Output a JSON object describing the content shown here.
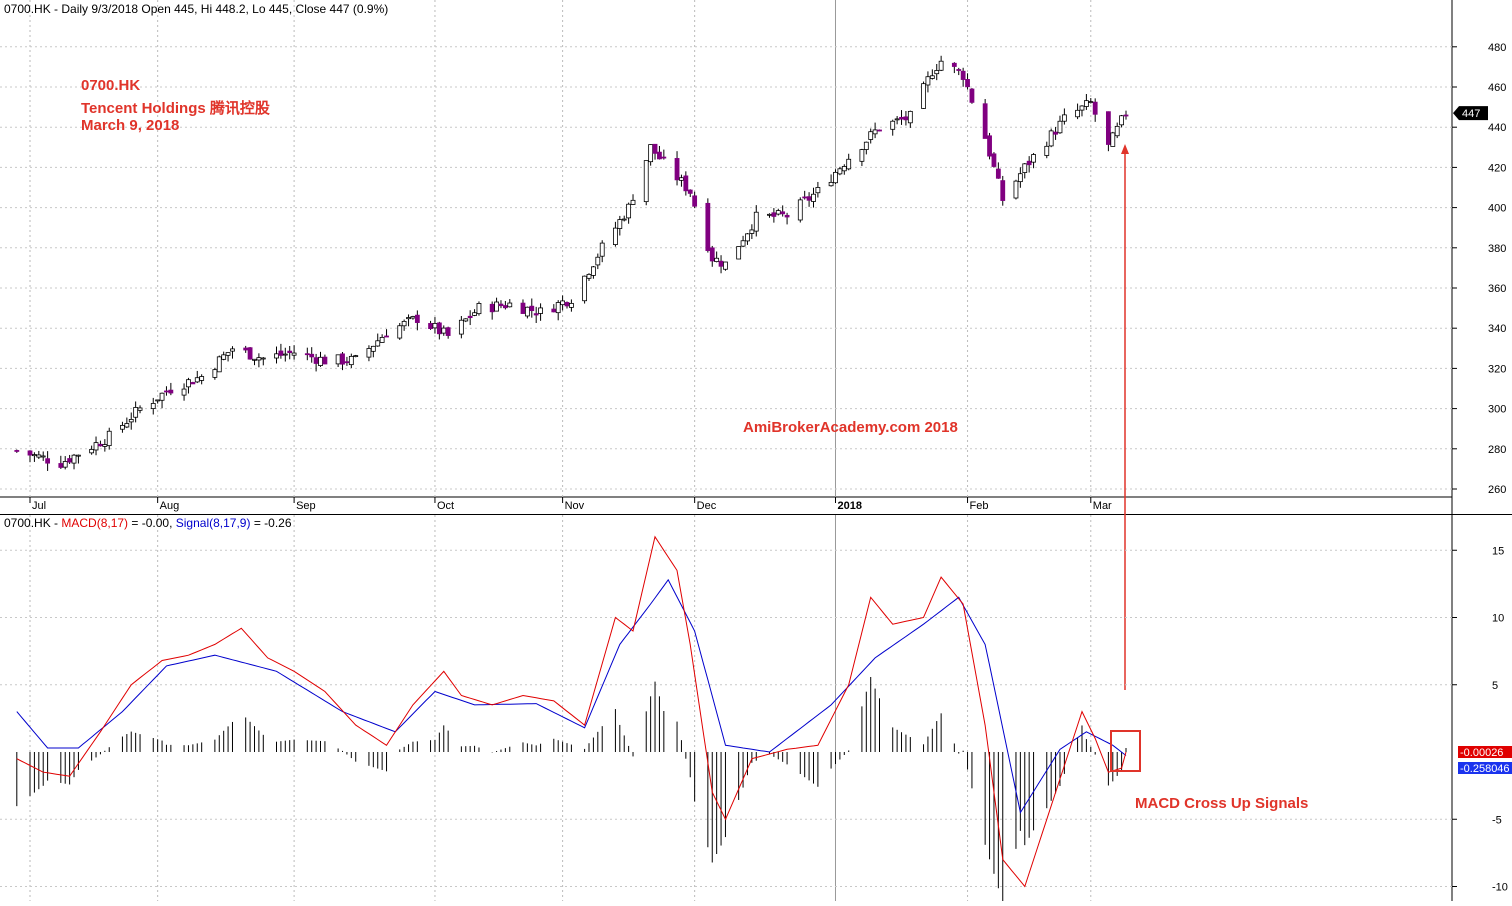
{
  "header": {
    "price_info": "0700.HK - Daily 9/3/2018 Open 445, Hi 448.2, Lo 445, Close 447 (0.9%)",
    "macd_prefix": "0700.HK - ",
    "macd_label": "MACD(8,17)",
    "macd_value_text": " = -0.00, ",
    "signal_label": "Signal(8,17,9)",
    "signal_value_text": " = -0.26"
  },
  "annotations": {
    "ticker": "0700.HK",
    "company": "Tencent Holdings 腾讯控股",
    "date": "March 9, 2018",
    "watermark": "AmiBrokerAcademy.com  2018",
    "signal_note": "MACD Cross Up Signals"
  },
  "colors": {
    "bear_candle": "#800080",
    "bull_candle": "#ffffff",
    "macd_line": "#e00000",
    "signal_line": "#0000cc",
    "histogram": "#000000",
    "annotation": "#e0342a"
  },
  "chart_data": [
    {
      "type": "candlestick",
      "title": "0700.HK - Daily 9/3/2018 Open 445, Hi 448.2, Lo 445, Close 447 (0.9%)",
      "x_tick_labels": [
        "Jul",
        "Aug",
        "Sep",
        "Oct",
        "Nov",
        "Dec",
        "2018",
        "Feb",
        "Mar"
      ],
      "y_ticks": [
        260,
        280,
        300,
        320,
        340,
        360,
        380,
        400,
        420,
        440,
        460,
        480
      ],
      "ylim": [
        252,
        484
      ],
      "grid": true,
      "last_price_label": "447",
      "close_path": [
        {
          "date": "2017-06-30",
          "close": 279
        },
        {
          "date": "2017-07-10",
          "close": 273
        },
        {
          "date": "2017-07-21",
          "close": 286
        },
        {
          "date": "2017-07-28",
          "close": 300
        },
        {
          "date": "2017-08-04",
          "close": 310
        },
        {
          "date": "2017-08-11",
          "close": 316
        },
        {
          "date": "2017-08-18",
          "close": 330
        },
        {
          "date": "2017-08-25",
          "close": 325
        },
        {
          "date": "2017-09-01",
          "close": 328
        },
        {
          "date": "2017-09-08",
          "close": 324
        },
        {
          "date": "2017-09-15",
          "close": 324
        },
        {
          "date": "2017-09-22",
          "close": 338
        },
        {
          "date": "2017-09-29",
          "close": 345
        },
        {
          "date": "2017-10-06",
          "close": 336
        },
        {
          "date": "2017-10-13",
          "close": 350
        },
        {
          "date": "2017-10-20",
          "close": 352
        },
        {
          "date": "2017-10-27",
          "close": 348
        },
        {
          "date": "2017-11-03",
          "close": 355
        },
        {
          "date": "2017-11-10",
          "close": 380
        },
        {
          "date": "2017-11-16",
          "close": 400
        },
        {
          "date": "2017-11-21",
          "close": 430
        },
        {
          "date": "2017-11-24",
          "close": 422
        },
        {
          "date": "2017-11-30",
          "close": 408
        },
        {
          "date": "2017-12-05",
          "close": 375
        },
        {
          "date": "2017-12-08",
          "close": 372
        },
        {
          "date": "2017-12-15",
          "close": 395
        },
        {
          "date": "2017-12-22",
          "close": 396
        },
        {
          "date": "2017-12-29",
          "close": 408
        },
        {
          "date": "2018-01-05",
          "close": 425
        },
        {
          "date": "2018-01-12",
          "close": 440
        },
        {
          "date": "2018-01-19",
          "close": 445
        },
        {
          "date": "2018-01-24",
          "close": 468
        },
        {
          "date": "2018-01-26",
          "close": 473
        },
        {
          "date": "2018-01-31",
          "close": 466
        },
        {
          "date": "2018-02-05",
          "close": 435
        },
        {
          "date": "2018-02-09",
          "close": 404
        },
        {
          "date": "2018-02-14",
          "close": 420
        },
        {
          "date": "2018-02-23",
          "close": 444
        },
        {
          "date": "2018-03-01",
          "close": 452
        },
        {
          "date": "2018-03-05",
          "close": 430
        },
        {
          "date": "2018-03-08",
          "close": 443
        },
        {
          "date": "2018-03-09",
          "close": 447
        }
      ]
    },
    {
      "type": "line",
      "title": "MACD(8,17) = -0.00, Signal(8,17,9) = -0.26",
      "y_ticks": [
        -10,
        -5,
        5,
        10,
        15
      ],
      "ylim": [
        -10.5,
        16.5
      ],
      "grid": true,
      "series": [
        {
          "name": "MACD(8,17)",
          "color": "#e00000",
          "points": [
            {
              "date": "2017-06-30",
              "value": -0.5
            },
            {
              "date": "2017-07-06",
              "value": -1.5
            },
            {
              "date": "2017-07-12",
              "value": -1.8
            },
            {
              "date": "2017-07-19",
              "value": 1.5
            },
            {
              "date": "2017-07-26",
              "value": 5.0
            },
            {
              "date": "2017-08-02",
              "value": 6.8
            },
            {
              "date": "2017-08-08",
              "value": 7.2
            },
            {
              "date": "2017-08-14",
              "value": 8.0
            },
            {
              "date": "2017-08-20",
              "value": 9.2
            },
            {
              "date": "2017-08-26",
              "value": 7.0
            },
            {
              "date": "2017-09-01",
              "value": 6.0
            },
            {
              "date": "2017-09-08",
              "value": 4.5
            },
            {
              "date": "2017-09-15",
              "value": 2.0
            },
            {
              "date": "2017-09-22",
              "value": 0.5
            },
            {
              "date": "2017-09-28",
              "value": 3.5
            },
            {
              "date": "2017-10-05",
              "value": 6.0
            },
            {
              "date": "2017-10-09",
              "value": 4.2
            },
            {
              "date": "2017-10-16",
              "value": 3.5
            },
            {
              "date": "2017-10-23",
              "value": 4.2
            },
            {
              "date": "2017-10-30",
              "value": 3.8
            },
            {
              "date": "2017-11-06",
              "value": 2.0
            },
            {
              "date": "2017-11-13",
              "value": 10.0
            },
            {
              "date": "2017-11-17",
              "value": 9.0
            },
            {
              "date": "2017-11-22",
              "value": 16.0
            },
            {
              "date": "2017-11-27",
              "value": 13.5
            },
            {
              "date": "2017-11-30",
              "value": 8.0
            },
            {
              "date": "2017-12-05",
              "value": -3.0
            },
            {
              "date": "2017-12-08",
              "value": -5.0
            },
            {
              "date": "2017-12-14",
              "value": -0.5
            },
            {
              "date": "2017-12-22",
              "value": 0.2
            },
            {
              "date": "2017-12-29",
              "value": 0.5
            },
            {
              "date": "2018-01-05",
              "value": 5.0
            },
            {
              "date": "2018-01-10",
              "value": 11.5
            },
            {
              "date": "2018-01-15",
              "value": 9.5
            },
            {
              "date": "2018-01-22",
              "value": 10.0
            },
            {
              "date": "2018-01-26",
              "value": 13.0
            },
            {
              "date": "2018-01-31",
              "value": 11.0
            },
            {
              "date": "2018-02-05",
              "value": 2.0
            },
            {
              "date": "2018-02-09",
              "value": -8.0
            },
            {
              "date": "2018-02-14",
              "value": -10.0
            },
            {
              "date": "2018-02-22",
              "value": -2.0
            },
            {
              "date": "2018-02-27",
              "value": 3.0
            },
            {
              "date": "2018-03-02",
              "value": 1.0
            },
            {
              "date": "2018-03-05",
              "value": -1.5
            },
            {
              "date": "2018-03-08",
              "value": -1.2
            },
            {
              "date": "2018-03-09",
              "value": 0.0
            }
          ]
        },
        {
          "name": "Signal(8,17,9)",
          "color": "#0000cc",
          "points": [
            {
              "date": "2017-06-30",
              "value": 3.0
            },
            {
              "date": "2017-07-07",
              "value": 0.3
            },
            {
              "date": "2017-07-14",
              "value": 0.3
            },
            {
              "date": "2017-07-24",
              "value": 3.0
            },
            {
              "date": "2017-08-03",
              "value": 6.4
            },
            {
              "date": "2017-08-14",
              "value": 7.2
            },
            {
              "date": "2017-08-28",
              "value": 6.0
            },
            {
              "date": "2017-09-12",
              "value": 3.0
            },
            {
              "date": "2017-09-24",
              "value": 1.5
            },
            {
              "date": "2017-10-03",
              "value": 4.5
            },
            {
              "date": "2017-10-12",
              "value": 3.5
            },
            {
              "date": "2017-10-26",
              "value": 3.6
            },
            {
              "date": "2017-11-06",
              "value": 1.8
            },
            {
              "date": "2017-11-14",
              "value": 8.0
            },
            {
              "date": "2017-11-21",
              "value": 11.0
            },
            {
              "date": "2017-11-25",
              "value": 12.8
            },
            {
              "date": "2017-12-01",
              "value": 9.0
            },
            {
              "date": "2017-12-08",
              "value": 0.5
            },
            {
              "date": "2017-12-18",
              "value": 0.0
            },
            {
              "date": "2018-01-01",
              "value": 3.5
            },
            {
              "date": "2018-01-11",
              "value": 7.0
            },
            {
              "date": "2018-01-22",
              "value": 9.5
            },
            {
              "date": "2018-01-30",
              "value": 11.5
            },
            {
              "date": "2018-02-05",
              "value": 8.0
            },
            {
              "date": "2018-02-13",
              "value": -4.5
            },
            {
              "date": "2018-02-22",
              "value": 0.2
            },
            {
              "date": "2018-02-28",
              "value": 1.5
            },
            {
              "date": "2018-03-06",
              "value": 0.5
            },
            {
              "date": "2018-03-09",
              "value": -0.26
            }
          ]
        }
      ],
      "histogram_note": "MACD minus Signal",
      "last_value_labels": [
        "-0.00026",
        "-0.258046"
      ]
    }
  ]
}
